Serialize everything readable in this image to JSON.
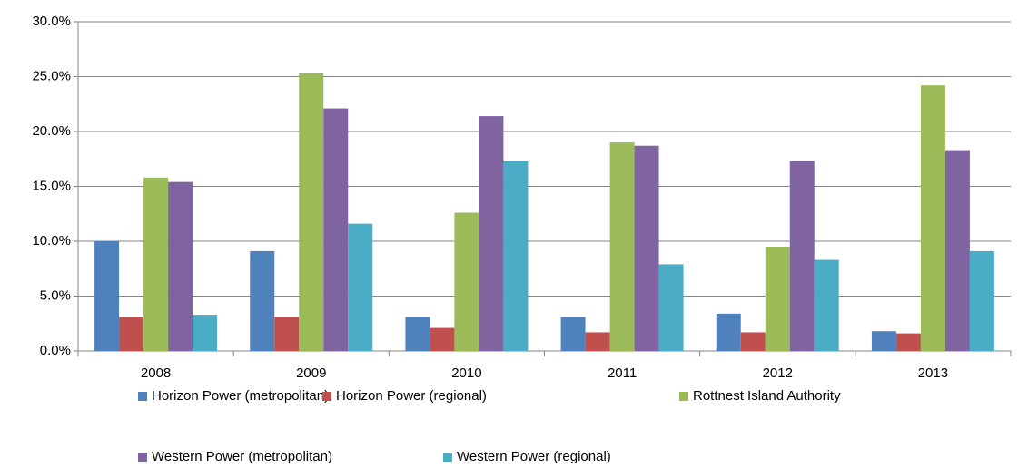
{
  "chart_data": {
    "type": "bar",
    "categories": [
      "2008",
      "2009",
      "2010",
      "2011",
      "2012",
      "2013"
    ],
    "series": [
      {
        "name": "Horizon Power (metropolitan)",
        "color": "#4f81bd",
        "values": [
          10.0,
          9.1,
          3.1,
          3.1,
          3.4,
          1.8
        ]
      },
      {
        "name": "Horizon Power (regional)",
        "color": "#c0504d",
        "values": [
          3.1,
          3.1,
          2.1,
          1.7,
          1.7,
          1.6
        ]
      },
      {
        "name": "Rottnest Island Authority",
        "color": "#9bbb59",
        "values": [
          15.8,
          25.3,
          12.6,
          19.0,
          9.5,
          24.2
        ]
      },
      {
        "name": "Western Power (metropolitan)",
        "color": "#8064a2",
        "values": [
          15.4,
          22.1,
          21.4,
          18.7,
          17.3,
          18.3
        ]
      },
      {
        "name": "Western Power (regional)",
        "color": "#4bacc6",
        "values": [
          3.3,
          11.6,
          17.3,
          7.9,
          8.3,
          9.1
        ]
      }
    ],
    "ylim": [
      0,
      30
    ],
    "yticks": [
      {
        "value": 0,
        "label": "0.0%"
      },
      {
        "value": 5,
        "label": "5.0%"
      },
      {
        "value": 10,
        "label": "10.0%"
      },
      {
        "value": 15,
        "label": "15.0%"
      },
      {
        "value": 20,
        "label": "20.0%"
      },
      {
        "value": 25,
        "label": "25.0%"
      },
      {
        "value": 30,
        "label": "30.0%"
      }
    ],
    "grid": true,
    "legend": "bottom"
  }
}
